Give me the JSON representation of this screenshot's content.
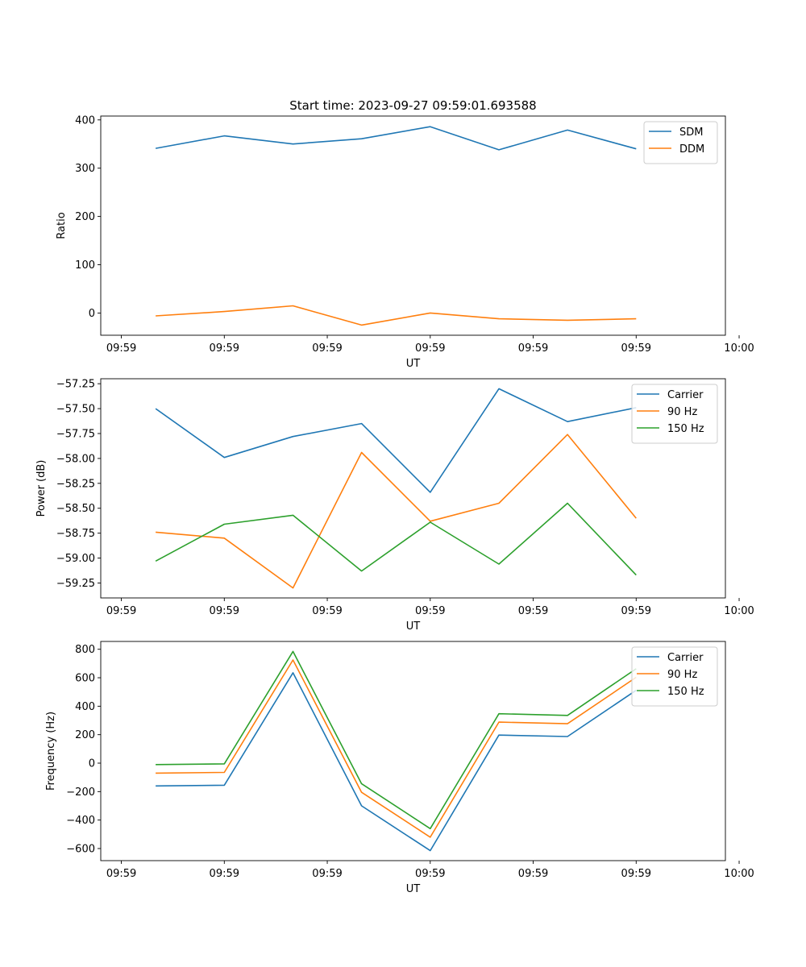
{
  "colors": {
    "blue": "#1f77b4",
    "orange": "#ff7f0e",
    "green": "#2ca02c"
  },
  "chart_data": [
    {
      "type": "line",
      "title": "Start time: 2023-09-27 09:59:01.693588",
      "xlabel": "UT",
      "ylabel": "Ratio",
      "x": [
        1,
        2,
        3,
        4,
        5,
        6,
        7,
        8
      ],
      "xlim": [
        0.2,
        9.3
      ],
      "xticks": [
        0.5,
        2,
        3.5,
        5,
        6.5,
        8,
        9.5
      ],
      "xtick_labels": [
        "09:59",
        "09:59",
        "09:59",
        "09:59",
        "09:59",
        "09:59",
        "10:00"
      ],
      "ylim": [
        -46,
        408
      ],
      "yticks": [
        0,
        100,
        200,
        300,
        400
      ],
      "ytick_labels": [
        "0",
        "100",
        "200",
        "300",
        "400"
      ],
      "legend_position": "top-right",
      "series": [
        {
          "name": "SDM",
          "color": "#1f77b4",
          "values": [
            341,
            367,
            350,
            361,
            386,
            338,
            379,
            340
          ]
        },
        {
          "name": "DDM",
          "color": "#ff7f0e",
          "values": [
            -6,
            3,
            15,
            -25,
            0,
            -12,
            -15,
            -12
          ]
        }
      ]
    },
    {
      "type": "line",
      "title": "",
      "xlabel": "UT",
      "ylabel": "Power (dB)",
      "x": [
        1,
        2,
        3,
        4,
        5,
        6,
        7,
        8
      ],
      "xlim": [
        0.2,
        9.3
      ],
      "xticks": [
        0.5,
        2,
        3.5,
        5,
        6.5,
        8,
        9.5
      ],
      "xtick_labels": [
        "09:59",
        "09:59",
        "09:59",
        "09:59",
        "09:59",
        "09:59",
        "10:00"
      ],
      "ylim": [
        -59.4,
        -57.2
      ],
      "yticks": [
        -57.25,
        -57.5,
        -57.75,
        -58.0,
        -58.25,
        -58.5,
        -58.75,
        -59.0,
        -59.25
      ],
      "ytick_labels": [
        "−57.25",
        "−57.50",
        "−57.75",
        "−58.00",
        "−58.25",
        "−58.50",
        "−58.75",
        "−59.00",
        "−59.25"
      ],
      "legend_position": "top-right",
      "series": [
        {
          "name": "Carrier",
          "color": "#1f77b4",
          "values": [
            -57.5,
            -57.99,
            -57.78,
            -57.65,
            -58.34,
            -57.3,
            -57.63,
            -57.49
          ]
        },
        {
          "name": "90 Hz",
          "color": "#ff7f0e",
          "values": [
            -58.74,
            -58.8,
            -59.3,
            -57.94,
            -58.63,
            -58.45,
            -57.76,
            -58.6
          ]
        },
        {
          "name": "150 Hz",
          "color": "#2ca02c",
          "values": [
            -59.03,
            -58.66,
            -58.57,
            -59.13,
            -58.64,
            -59.06,
            -58.45,
            -59.17
          ]
        }
      ]
    },
    {
      "type": "line",
      "title": "",
      "xlabel": "UT",
      "ylabel": "Frequency (Hz)",
      "x": [
        1,
        2,
        3,
        4,
        5,
        6,
        7,
        8
      ],
      "xlim": [
        0.2,
        9.3
      ],
      "xticks": [
        0.5,
        2,
        3.5,
        5,
        6.5,
        8,
        9.5
      ],
      "xtick_labels": [
        "09:59",
        "09:59",
        "09:59",
        "09:59",
        "09:59",
        "09:59",
        "10:00"
      ],
      "ylim": [
        -685,
        855
      ],
      "yticks": [
        800,
        600,
        400,
        200,
        0,
        -200,
        -400,
        -600
      ],
      "ytick_labels": [
        "800",
        "600",
        "400",
        "200",
        "0",
        "−200",
        "−400",
        "−600"
      ],
      "legend_position": "top-right",
      "series": [
        {
          "name": "Carrier",
          "color": "#1f77b4",
          "values": [
            -160,
            -155,
            635,
            -300,
            -615,
            197,
            187,
            512
          ]
        },
        {
          "name": "90 Hz",
          "color": "#ff7f0e",
          "values": [
            -70,
            -65,
            725,
            -205,
            -520,
            288,
            277,
            603
          ]
        },
        {
          "name": "150 Hz",
          "color": "#2ca02c",
          "values": [
            -10,
            -5,
            785,
            -145,
            -460,
            347,
            335,
            663
          ]
        }
      ]
    }
  ]
}
